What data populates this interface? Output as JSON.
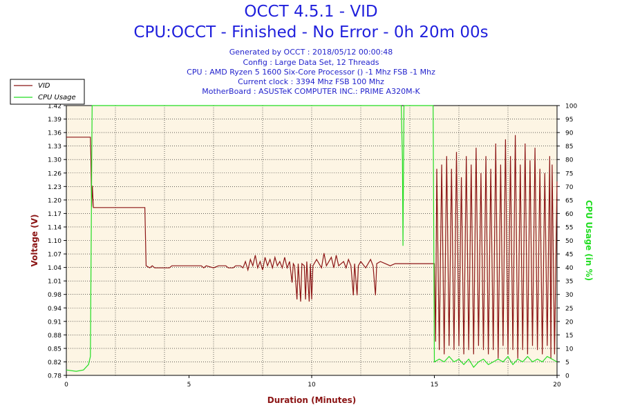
{
  "header": {
    "title": "OCCT 4.5.1 - VID",
    "subtitle": "CPU:OCCT - Finished - No Error - 0h 20m 00s",
    "info": [
      "Generated by OCCT : 2018/05/12 00:00:48",
      "Config : Large Data Set, 12 Threads",
      "CPU : AMD Ryzen 5 1600 Six-Core Processor () -1 Mhz FSB -1 Mhz",
      "Current clock : 3394 Mhz FSB 100 Mhz",
      "MotherBoard : ASUSTeK COMPUTER INC.: PRIME A320M-K"
    ]
  },
  "chart_data": {
    "type": "line",
    "xlabel": "Duration (Minutes)",
    "ylabel_left": "Voltage (V)",
    "ylabel_right": "CPU Usage (in %)",
    "xlim": [
      0,
      20
    ],
    "ylim_left": [
      0.78,
      1.42
    ],
    "ylim_right": [
      0,
      100
    ],
    "x_ticks": [
      "0",
      "5",
      "10",
      "15",
      "20"
    ],
    "y_left_ticks": [
      "0.78",
      "0.82",
      "0.85",
      "0.88",
      "0.91",
      "0.94",
      "0.98",
      "1.01",
      "1.04",
      "1.07",
      "1.10",
      "1.14",
      "1.17",
      "1.20",
      "1.23",
      "1.26",
      "1.30",
      "1.33",
      "1.36",
      "1.39",
      "1.42"
    ],
    "y_right_ticks": [
      "0",
      "5",
      "10",
      "15",
      "20",
      "25",
      "30",
      "35",
      "40",
      "45",
      "50",
      "55",
      "60",
      "65",
      "70",
      "75",
      "80",
      "85",
      "90",
      "95",
      "100"
    ],
    "grid": true,
    "legend_position": "top-left",
    "colors": {
      "background": "#fdf5e4",
      "vid": "#8b1414",
      "cpu": "#22dd22",
      "title": "#1f1fdc",
      "axis_label": "#8b1414"
    },
    "series": [
      {
        "name": "VID",
        "axis": "left",
        "points": [
          [
            0,
            1.345
          ],
          [
            0.98,
            1.345
          ],
          [
            1.0,
            1.3
          ],
          [
            1.03,
            1.18
          ],
          [
            1.06,
            1.23
          ],
          [
            1.1,
            1.178
          ],
          [
            3.2,
            1.178
          ],
          [
            3.25,
            1.04
          ],
          [
            3.4,
            1.035
          ],
          [
            3.5,
            1.04
          ],
          [
            3.6,
            1.035
          ],
          [
            4.2,
            1.035
          ],
          [
            4.3,
            1.04
          ],
          [
            5.5,
            1.04
          ],
          [
            5.6,
            1.035
          ],
          [
            5.7,
            1.04
          ],
          [
            6.0,
            1.035
          ],
          [
            6.2,
            1.04
          ],
          [
            6.5,
            1.04
          ],
          [
            6.6,
            1.035
          ],
          [
            6.8,
            1.035
          ],
          [
            6.9,
            1.04
          ],
          [
            7.1,
            1.04
          ],
          [
            7.2,
            1.035
          ],
          [
            7.3,
            1.05
          ],
          [
            7.4,
            1.03
          ],
          [
            7.5,
            1.055
          ],
          [
            7.6,
            1.04
          ],
          [
            7.7,
            1.065
          ],
          [
            7.8,
            1.035
          ],
          [
            7.9,
            1.05
          ],
          [
            8.0,
            1.03
          ],
          [
            8.1,
            1.06
          ],
          [
            8.2,
            1.04
          ],
          [
            8.3,
            1.055
          ],
          [
            8.4,
            1.035
          ],
          [
            8.5,
            1.06
          ],
          [
            8.6,
            1.04
          ],
          [
            8.7,
            1.05
          ],
          [
            8.8,
            1.035
          ],
          [
            8.9,
            1.06
          ],
          [
            9.0,
            1.035
          ],
          [
            9.1,
            1.05
          ],
          [
            9.2,
            1.0
          ],
          [
            9.25,
            1.045
          ],
          [
            9.3,
            1.04
          ],
          [
            9.4,
            0.96
          ],
          [
            9.45,
            1.045
          ],
          [
            9.55,
            0.955
          ],
          [
            9.6,
            1.045
          ],
          [
            9.7,
            1.04
          ],
          [
            9.75,
            0.96
          ],
          [
            9.8,
            1.05
          ],
          [
            9.9,
            0.955
          ],
          [
            9.95,
            1.045
          ],
          [
            10.0,
            0.96
          ],
          [
            10.05,
            1.04
          ],
          [
            10.2,
            1.055
          ],
          [
            10.4,
            1.035
          ],
          [
            10.5,
            1.07
          ],
          [
            10.6,
            1.04
          ],
          [
            10.8,
            1.06
          ],
          [
            10.9,
            1.035
          ],
          [
            11.0,
            1.065
          ],
          [
            11.1,
            1.04
          ],
          [
            11.3,
            1.05
          ],
          [
            11.4,
            1.035
          ],
          [
            11.5,
            1.055
          ],
          [
            11.6,
            1.04
          ],
          [
            11.7,
            0.97
          ],
          [
            11.75,
            1.045
          ],
          [
            11.85,
            0.97
          ],
          [
            11.9,
            1.04
          ],
          [
            12.0,
            1.05
          ],
          [
            12.2,
            1.035
          ],
          [
            12.4,
            1.055
          ],
          [
            12.5,
            1.04
          ],
          [
            12.6,
            0.97
          ],
          [
            12.65,
            1.045
          ],
          [
            12.8,
            1.05
          ],
          [
            13.0,
            1.045
          ],
          [
            13.2,
            1.04
          ],
          [
            13.4,
            1.045
          ],
          [
            13.6,
            1.045
          ],
          [
            15.0,
            1.045
          ],
          [
            15.05,
            0.86
          ],
          [
            15.1,
            1.27
          ],
          [
            15.2,
            0.84
          ],
          [
            15.3,
            1.28
          ],
          [
            15.4,
            0.83
          ],
          [
            15.5,
            1.3
          ],
          [
            15.6,
            0.85
          ],
          [
            15.7,
            1.27
          ],
          [
            15.8,
            0.84
          ],
          [
            15.9,
            1.31
          ],
          [
            16.0,
            0.85
          ],
          [
            16.1,
            1.25
          ],
          [
            16.2,
            0.83
          ],
          [
            16.3,
            1.3
          ],
          [
            16.4,
            0.84
          ],
          [
            16.5,
            1.28
          ],
          [
            16.6,
            0.83
          ],
          [
            16.7,
            1.32
          ],
          [
            16.8,
            0.85
          ],
          [
            16.9,
            1.26
          ],
          [
            17.0,
            0.84
          ],
          [
            17.1,
            1.3
          ],
          [
            17.2,
            0.83
          ],
          [
            17.3,
            1.27
          ],
          [
            17.4,
            0.84
          ],
          [
            17.5,
            1.33
          ],
          [
            17.6,
            0.82
          ],
          [
            17.7,
            1.28
          ],
          [
            17.8,
            0.85
          ],
          [
            17.9,
            1.34
          ],
          [
            18.0,
            0.83
          ],
          [
            18.1,
            1.3
          ],
          [
            18.2,
            0.84
          ],
          [
            18.3,
            1.35
          ],
          [
            18.4,
            0.82
          ],
          [
            18.5,
            1.28
          ],
          [
            18.6,
            0.84
          ],
          [
            18.7,
            1.33
          ],
          [
            18.8,
            0.83
          ],
          [
            18.9,
            1.29
          ],
          [
            19.0,
            0.85
          ],
          [
            19.1,
            1.32
          ],
          [
            19.2,
            0.84
          ],
          [
            19.3,
            1.27
          ],
          [
            19.4,
            0.83
          ],
          [
            19.5,
            1.26
          ],
          [
            19.6,
            0.85
          ],
          [
            19.7,
            1.3
          ],
          [
            19.75,
            0.82
          ],
          [
            19.8,
            1.28
          ],
          [
            19.9,
            0.83
          ],
          [
            20.0,
            1.24
          ]
        ]
      },
      {
        "name": "CPU Usage",
        "axis": "right",
        "points": [
          [
            0,
            2
          ],
          [
            0.4,
            1.5
          ],
          [
            0.7,
            2
          ],
          [
            0.9,
            4
          ],
          [
            0.98,
            7
          ],
          [
            1.05,
            100
          ],
          [
            13.65,
            100
          ],
          [
            13.7,
            80
          ],
          [
            13.72,
            48
          ],
          [
            13.76,
            100
          ],
          [
            14.95,
            100
          ],
          [
            15.0,
            5
          ],
          [
            15.2,
            6
          ],
          [
            15.4,
            5
          ],
          [
            15.6,
            7
          ],
          [
            15.8,
            5
          ],
          [
            16.0,
            6
          ],
          [
            16.2,
            4
          ],
          [
            16.4,
            6
          ],
          [
            16.6,
            3
          ],
          [
            16.8,
            5
          ],
          [
            17.0,
            6
          ],
          [
            17.2,
            4
          ],
          [
            17.4,
            5
          ],
          [
            17.6,
            6
          ],
          [
            17.8,
            5
          ],
          [
            18.0,
            7
          ],
          [
            18.2,
            4
          ],
          [
            18.4,
            6
          ],
          [
            18.6,
            5
          ],
          [
            18.8,
            7
          ],
          [
            19.0,
            5
          ],
          [
            19.2,
            6
          ],
          [
            19.4,
            5
          ],
          [
            19.6,
            7
          ],
          [
            19.8,
            6
          ],
          [
            20.0,
            5
          ]
        ]
      }
    ]
  }
}
